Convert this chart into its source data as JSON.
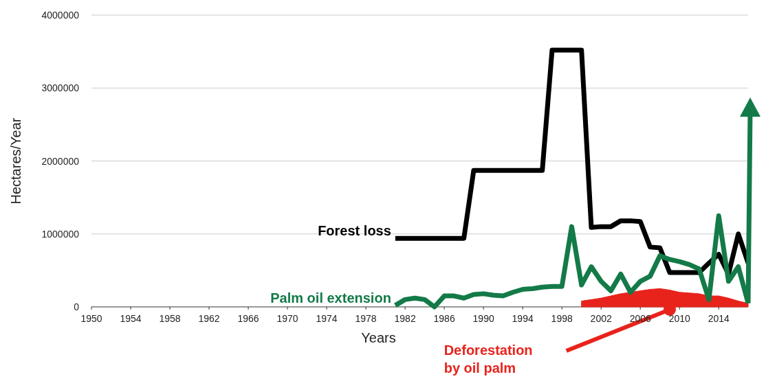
{
  "chart_data": {
    "type": "line",
    "xlabel": "Years",
    "ylabel": "Hectares/Year",
    "xlim": [
      1950,
      2017
    ],
    "xticks": [
      1950,
      1954,
      1958,
      1962,
      1966,
      1970,
      1974,
      1978,
      1982,
      1986,
      1990,
      1994,
      1998,
      2002,
      2006,
      2010,
      2014
    ],
    "ylim": [
      0,
      4000000
    ],
    "yticks": [
      0,
      1000000,
      2000000,
      3000000,
      4000000
    ],
    "grid": "y",
    "series": [
      {
        "name": "Forest loss",
        "color": "#000000",
        "x": [
          1981,
          1982,
          1983,
          1984,
          1985,
          1986,
          1987,
          1988,
          1989,
          1990,
          1991,
          1992,
          1993,
          1994,
          1995,
          1996,
          1997,
          1998,
          1999,
          2000,
          2001,
          2002,
          2003,
          2004,
          2005,
          2006,
          2007,
          2008,
          2009,
          2010,
          2011,
          2012,
          2013,
          2014,
          2015,
          2016,
          2017
        ],
        "values": [
          940000,
          940000,
          940000,
          940000,
          940000,
          940000,
          940000,
          940000,
          1870000,
          1870000,
          1870000,
          1870000,
          1870000,
          1870000,
          1870000,
          1870000,
          3520000,
          3520000,
          3520000,
          3520000,
          1090000,
          1100000,
          1100000,
          1180000,
          1180000,
          1170000,
          820000,
          810000,
          470000,
          470000,
          470000,
          470000,
          600000,
          720000,
          450000,
          1000000,
          600000
        ]
      },
      {
        "name": "Palm oil extension",
        "color": "#137a48",
        "x": [
          1981,
          1982,
          1983,
          1984,
          1985,
          1986,
          1987,
          1988,
          1989,
          1990,
          1991,
          1992,
          1993,
          1994,
          1995,
          1996,
          1997,
          1998,
          1999,
          2000,
          2001,
          2002,
          2003,
          2004,
          2005,
          2006,
          2007,
          2008,
          2009,
          2010,
          2011,
          2012,
          2013,
          2014,
          2015,
          2016,
          2017
        ],
        "values": [
          20000,
          100000,
          120000,
          100000,
          0,
          150000,
          150000,
          120000,
          170000,
          180000,
          160000,
          150000,
          200000,
          240000,
          250000,
          270000,
          280000,
          280000,
          1100000,
          300000,
          550000,
          350000,
          220000,
          450000,
          200000,
          350000,
          420000,
          700000,
          650000,
          620000,
          580000,
          520000,
          100000,
          1250000,
          350000,
          550000,
          50000
        ]
      },
      {
        "name": "Deforestation by oil palm",
        "type": "area",
        "color": "#e8231c",
        "x": [
          2000,
          2001,
          2002,
          2003,
          2004,
          2005,
          2006,
          2007,
          2008,
          2009,
          2010,
          2011,
          2012,
          2013,
          2014,
          2015,
          2016,
          2017
        ],
        "values": [
          80000,
          100000,
          120000,
          150000,
          180000,
          200000,
          220000,
          240000,
          250000,
          230000,
          200000,
          190000,
          180000,
          150000,
          150000,
          120000,
          80000,
          50000
        ]
      }
    ]
  }
}
